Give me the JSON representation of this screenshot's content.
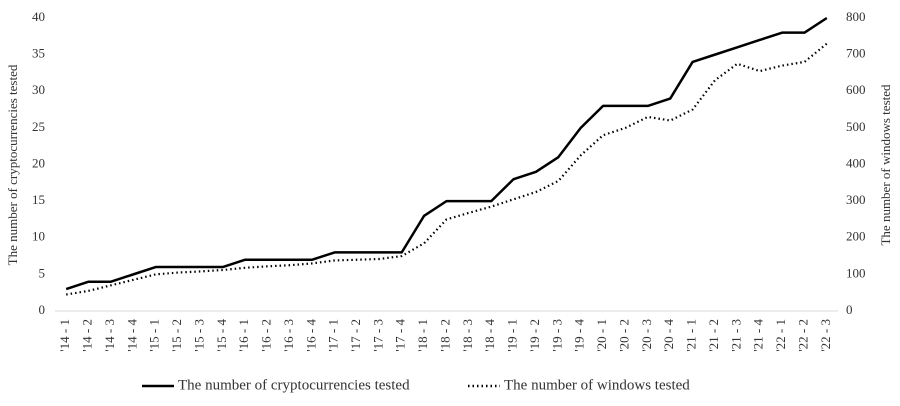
{
  "chart_data": {
    "type": "line",
    "categories": [
      "'14 - 1",
      "'14 - 2",
      "'14 - 3",
      "'14 - 4",
      "'15 - 1",
      "'15 - 2",
      "'15 - 3",
      "'15 - 4",
      "'16 - 1",
      "'16 - 2",
      "'16 - 3",
      "'16 - 4",
      "'17 - 1",
      "'17 - 2",
      "'17 - 3",
      "'17 - 4",
      "'18 - 1",
      "'18 - 2",
      "'18 - 3",
      "'18 - 4",
      "'19 - 1",
      "'19 - 2",
      "'19 - 3",
      "'19 - 4",
      "'20 - 1",
      "'20 - 2",
      "'20 - 3",
      "'20 - 4",
      "'21 - 1",
      "'21 - 2",
      "'21 - 3",
      "'21 - 4",
      "'22 - 1",
      "'22 - 2",
      "'22 - 3"
    ],
    "series": [
      {
        "name": "The number of cryptocurrencies tested",
        "color": "#000000",
        "style": "solid",
        "axis": "y",
        "values": [
          3,
          4,
          4,
          5,
          6,
          6,
          6,
          6,
          7,
          7,
          7,
          7,
          8,
          8,
          8,
          8,
          13,
          15,
          15,
          15,
          18,
          19,
          21,
          25,
          28,
          28,
          28,
          29,
          34,
          35,
          36,
          37,
          38,
          38,
          40
        ]
      },
      {
        "name": "The number of windows tested",
        "color": "#000000",
        "style": "dotted",
        "axis": "y2",
        "values": [
          45,
          55,
          70,
          85,
          100,
          105,
          108,
          112,
          118,
          122,
          125,
          130,
          138,
          140,
          142,
          150,
          185,
          250,
          268,
          285,
          305,
          325,
          355,
          425,
          480,
          500,
          530,
          520,
          550,
          630,
          675,
          655,
          670,
          680,
          730
        ]
      }
    ],
    "ylabel": "The number of cryptocurrencies tested",
    "y2label": "The number of windows tested",
    "ylim": [
      0,
      40
    ],
    "yticks": [
      0,
      5,
      10,
      15,
      20,
      25,
      30,
      35,
      40
    ],
    "y2lim": [
      0,
      800
    ],
    "y2ticks": [
      0,
      100,
      200,
      300,
      400,
      500,
      600,
      700,
      800
    ],
    "grid": false,
    "legend": "bottom"
  }
}
